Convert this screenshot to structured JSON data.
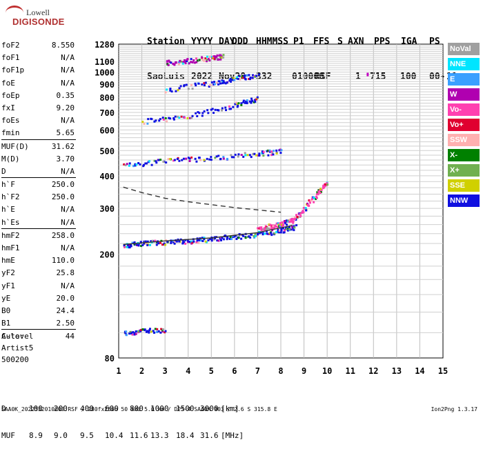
{
  "logo": {
    "line1": "Lowell",
    "line2": "DIGISONDE"
  },
  "header": {
    "row1": [
      "Station",
      "YYYY",
      "DAY",
      "DDD",
      "HHMMSS",
      "P1",
      "FFS",
      "S",
      "AXN",
      "PPS",
      "IGA",
      "PS"
    ],
    "row2": [
      "SaoLuis",
      "2022",
      "Nov28",
      "332",
      "010000",
      "RSF",
      "1",
      "715",
      "100",
      "00-",
      "11"
    ]
  },
  "params": [
    {
      "key": "foF2",
      "value": "8.550"
    },
    {
      "key": "foF1",
      "value": "N/A"
    },
    {
      "key": "foF1p",
      "value": "N/A"
    },
    {
      "key": "foE",
      "value": "N/A"
    },
    {
      "key": "foEp",
      "value": "0.35"
    },
    {
      "key": "fxI",
      "value": "9.20"
    },
    {
      "key": "foEs",
      "value": "N/A"
    },
    {
      "key": "fmin",
      "value": "5.65"
    },
    {
      "key": "MUF(D)",
      "value": "31.62"
    },
    {
      "key": "M(D)",
      "value": "3.70"
    },
    {
      "key": "D",
      "value": "N/A"
    },
    {
      "key": "h`F",
      "value": "250.0"
    },
    {
      "key": "h`F2",
      "value": "250.0"
    },
    {
      "key": "h`E",
      "value": "N/A"
    },
    {
      "key": "h`Es",
      "value": "N/A"
    },
    {
      "key": "hmF2",
      "value": "258.0"
    },
    {
      "key": "hmF1",
      "value": "N/A"
    },
    {
      "key": "hmE",
      "value": "110.0"
    },
    {
      "key": "yF2",
      "value": "25.8"
    },
    {
      "key": "yF1",
      "value": "N/A"
    },
    {
      "key": "yE",
      "value": "20.0"
    },
    {
      "key": "B0",
      "value": "24.4"
    },
    {
      "key": "B1",
      "value": "2.50"
    },
    {
      "key": "C-level",
      "value": "44"
    }
  ],
  "auto": {
    "label": "Auto:",
    "artist": "Artist5",
    "code": "500200"
  },
  "legend": [
    {
      "label": "NoVal",
      "color": "#a0a0a0"
    },
    {
      "label": "NNE",
      "color": "#00e5ff"
    },
    {
      "label": "E",
      "color": "#3aa0ff"
    },
    {
      "label": "W",
      "color": "#b000b0"
    },
    {
      "label": "Vo-",
      "color": "#ff40b0"
    },
    {
      "label": "Vo+",
      "color": "#e00030"
    },
    {
      "label": "SSW",
      "color": "#ffb0b0"
    },
    {
      "label": "X-",
      "color": "#008000"
    },
    {
      "label": "X+",
      "color": "#70b050"
    },
    {
      "label": "SSE",
      "color": "#d0d000"
    },
    {
      "label": "NNW",
      "color": "#1010e0"
    }
  ],
  "chart_data": {
    "type": "scatter",
    "title": "",
    "xlabel": "",
    "ylabel": "",
    "xlim": [
      1,
      15
    ],
    "ylim": [
      80,
      1280
    ],
    "yscale": "log",
    "xticks": [
      1,
      2,
      3,
      4,
      5,
      6,
      7,
      8,
      9,
      10,
      11,
      12,
      13,
      14,
      15
    ],
    "yticks": [
      80,
      200,
      300,
      400,
      500,
      600,
      700,
      800,
      900,
      1000,
      1100,
      1280
    ],
    "grid": true,
    "series": [
      {
        "color_key": "NNW",
        "points": [
          [
            1.2,
            218
          ],
          [
            2.0,
            221
          ],
          [
            3.0,
            224
          ],
          [
            4.0,
            226
          ],
          [
            5.0,
            230
          ],
          [
            6.0,
            235
          ],
          [
            7.0,
            240
          ],
          [
            8.0,
            248
          ],
          [
            8.6,
            256
          ]
        ]
      },
      {
        "color_key": "Vo-",
        "points": [
          [
            7.0,
            250
          ],
          [
            7.5,
            258
          ],
          [
            8.0,
            262
          ],
          [
            8.5,
            272
          ],
          [
            9.0,
            300
          ],
          [
            9.5,
            340
          ],
          [
            10.0,
            380
          ]
        ]
      },
      {
        "color_key": "NNW",
        "points": [
          [
            1.2,
            440
          ],
          [
            3.0,
            460
          ],
          [
            5.0,
            470
          ],
          [
            7.0,
            490
          ],
          [
            8.0,
            500
          ]
        ]
      },
      {
        "color_key": "NNW",
        "points": [
          [
            2.0,
            650
          ],
          [
            4.0,
            680
          ],
          [
            6.0,
            750
          ],
          [
            7.0,
            800
          ]
        ]
      },
      {
        "color_key": "NNW",
        "points": [
          [
            3.0,
            860
          ],
          [
            5.0,
            910
          ],
          [
            6.0,
            950
          ],
          [
            7.0,
            980
          ]
        ]
      },
      {
        "color_key": "W",
        "points": [
          [
            3.0,
            1090
          ],
          [
            4.0,
            1110
          ],
          [
            5.0,
            1140
          ],
          [
            5.5,
            1160
          ]
        ]
      },
      {
        "color_key": "NNW",
        "points": [
          [
            1.2,
            100
          ],
          [
            2.0,
            102
          ],
          [
            3.0,
            103
          ]
        ]
      }
    ],
    "curves": [
      {
        "style": "dashed",
        "points": [
          [
            1.2,
            362
          ],
          [
            2.0,
            345
          ],
          [
            3.0,
            328
          ],
          [
            4.0,
            318
          ],
          [
            5.0,
            310
          ],
          [
            6.0,
            302
          ],
          [
            7.0,
            296
          ],
          [
            8.0,
            290
          ]
        ]
      },
      {
        "style": "solid",
        "points": [
          [
            1.2,
            218
          ],
          [
            3.0,
            225
          ],
          [
            5.0,
            231
          ],
          [
            7.0,
            242
          ],
          [
            8.5,
            258
          ]
        ]
      }
    ],
    "extra_point": {
      "x": 11.75,
      "y": 985
    }
  },
  "dtable": {
    "d_label": "D",
    "d_values": [
      "100",
      "200",
      "400",
      "600",
      "800",
      "1000",
      "1500",
      "3000",
      "[km]"
    ],
    "muf_label": "MUF",
    "muf_values": [
      "8.9",
      "9.0",
      "9.5",
      "10.4",
      "11.6",
      "13.3",
      "18.4",
      "31.6",
      "[MHz]"
    ]
  },
  "footer": {
    "left": "SAA0K_2022332010000.RSF / 280fx256h 50 kHz 5.0 km / DPS-4 SAA0K 903 / 2.6 S 315.8 E",
    "right": "Ion2Png 1.3.17"
  }
}
